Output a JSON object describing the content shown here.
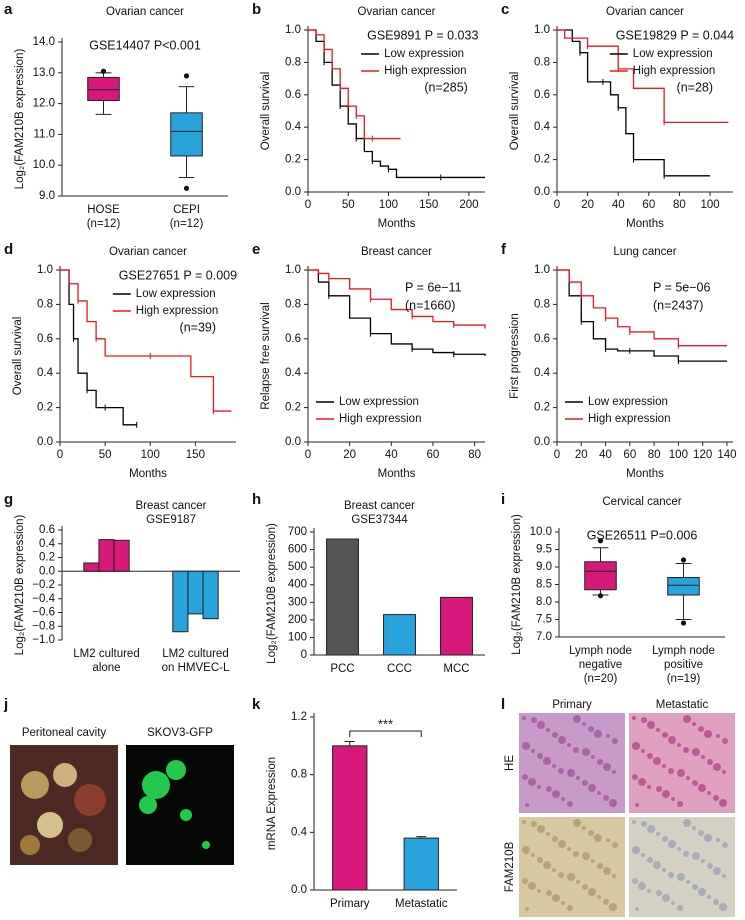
{
  "chart_data": [
    {
      "type": "box",
      "label": "a",
      "title": "Ovarian cancer",
      "annotations": [
        "GSE14407 P<0.001"
      ],
      "ylabel": "Log₂(FAM210B expression)",
      "categories": [
        [
          "HOSE",
          "(n=12)"
        ],
        [
          "CEPI",
          "(n=12)"
        ]
      ],
      "colors": [
        "#d6197a",
        "#29a3dc"
      ],
      "boxes": [
        {
          "whislo": 11.65,
          "q1": 12.1,
          "med": 12.45,
          "q3": 12.85,
          "whishi": 13.0,
          "fliers": [
            13.05
          ]
        },
        {
          "whislo": 9.6,
          "q1": 10.3,
          "med": 11.1,
          "q3": 11.7,
          "whishi": 12.55,
          "fliers": [
            12.9,
            9.25
          ]
        }
      ],
      "ylim": [
        9,
        14
      ],
      "yticks": [
        {
          "value": 9,
          "label": "9.0"
        },
        {
          "value": 10,
          "label": "10.0"
        },
        {
          "value": 11,
          "label": "11.0"
        },
        {
          "value": 12,
          "label": "12.0"
        },
        {
          "value": 13,
          "label": "13.0"
        },
        {
          "value": 14,
          "label": "14.0"
        }
      ]
    },
    {
      "type": "km",
      "label": "b",
      "title": "Ovarian cancer",
      "annotations": [
        "GSE9891 P = 0.033",
        "(n=285)"
      ],
      "legend": "upper right",
      "xlabel": "Months",
      "ylabel": "Overall survival",
      "series": [
        {
          "name": "Low expression",
          "color": "#000000",
          "x": [
            0,
            10,
            20,
            30,
            40,
            50,
            60,
            70,
            80,
            90,
            100,
            110,
            165,
            220
          ],
          "values": [
            1,
            0.93,
            0.8,
            0.66,
            0.53,
            0.42,
            0.33,
            0.25,
            0.19,
            0.16,
            0.14,
            0.09,
            0.09,
            0.09
          ]
        },
        {
          "name": "High expression",
          "color": "#e8191c",
          "x": [
            0,
            10,
            20,
            30,
            40,
            50,
            60,
            70,
            80,
            115
          ],
          "values": [
            1,
            0.97,
            0.88,
            0.76,
            0.64,
            0.53,
            0.47,
            0.33,
            0.33,
            0.33
          ]
        }
      ],
      "xlim": [
        0,
        220
      ],
      "xticks": [
        0,
        50,
        100,
        150,
        200
      ],
      "ylim": [
        0,
        1
      ],
      "yticks": [
        {
          "value": 0,
          "label": "0.0"
        },
        0.2,
        0.4,
        0.6,
        0.8,
        {
          "value": 1,
          "label": "1.0"
        }
      ]
    },
    {
      "type": "km",
      "label": "c",
      "title": "Ovarian cancer",
      "annotations": [
        "GSE19829 P = 0.044",
        "(n=28)"
      ],
      "legend": "upper right",
      "xlabel": "Months",
      "ylabel": "Overall survival",
      "series": [
        {
          "name": "Low expression",
          "color": "#000000",
          "x": [
            0,
            10,
            15,
            20,
            30,
            35,
            40,
            45,
            50,
            60,
            70,
            100
          ],
          "values": [
            1,
            0.93,
            0.86,
            0.68,
            0.68,
            0.6,
            0.52,
            0.36,
            0.2,
            0.2,
            0.1,
            0.1
          ]
        },
        {
          "name": "High expression",
          "color": "#e8191c",
          "x": [
            0,
            5,
            20,
            30,
            40,
            50,
            70,
            112
          ],
          "values": [
            1,
            0.95,
            0.9,
            0.9,
            0.76,
            0.64,
            0.43,
            0.43
          ]
        }
      ],
      "xlim": [
        0,
        115
      ],
      "xticks": [
        0,
        20,
        40,
        60,
        80,
        100
      ],
      "ylim": [
        0,
        1
      ],
      "yticks": [
        {
          "value": 0,
          "label": "0.0"
        },
        0.2,
        0.4,
        0.6,
        0.8,
        {
          "value": 1,
          "label": "1.0"
        }
      ]
    },
    {
      "type": "km",
      "label": "d",
      "title": "Ovarian cancer",
      "annotations": [
        "GSE27651 P = 0.009",
        "(n=39)"
      ],
      "legend": "upper right",
      "xlabel": "Months",
      "ylabel": "Overall survival",
      "series": [
        {
          "name": "Low expression",
          "color": "#000000",
          "x": [
            0,
            10,
            15,
            20,
            30,
            40,
            50,
            70,
            85
          ],
          "values": [
            1,
            0.8,
            0.6,
            0.4,
            0.3,
            0.2,
            0.2,
            0.1,
            0.1
          ]
        },
        {
          "name": "High expression",
          "color": "#e8191c",
          "x": [
            0,
            10,
            20,
            30,
            40,
            50,
            100,
            145,
            170,
            190
          ],
          "values": [
            1,
            0.92,
            0.82,
            0.7,
            0.6,
            0.5,
            0.5,
            0.38,
            0.18,
            0.18
          ]
        }
      ],
      "xlim": [
        0,
        195
      ],
      "xticks": [
        0,
        50,
        100,
        150
      ],
      "ylim": [
        0,
        1
      ],
      "yticks": [
        {
          "value": 0,
          "label": "0.0"
        },
        0.2,
        0.4,
        0.6,
        0.8,
        {
          "value": 1,
          "label": "1.0"
        }
      ]
    },
    {
      "type": "km",
      "label": "e",
      "title": "Breast cancer",
      "annotations": [
        "P = 6e−11",
        "(n=1660)"
      ],
      "legend": "lower left",
      "xlabel": "Months",
      "ylabel": "Relapse free survival",
      "series": [
        {
          "name": "Low expression",
          "color": "#000000",
          "x": [
            0,
            5,
            10,
            20,
            30,
            40,
            50,
            60,
            70,
            85
          ],
          "values": [
            1,
            0.93,
            0.85,
            0.72,
            0.63,
            0.57,
            0.54,
            0.52,
            0.51,
            0.5
          ]
        },
        {
          "name": "High expression",
          "color": "#e8191c",
          "x": [
            0,
            5,
            10,
            20,
            30,
            40,
            50,
            60,
            70,
            85
          ],
          "values": [
            1,
            0.98,
            0.95,
            0.89,
            0.83,
            0.77,
            0.73,
            0.7,
            0.68,
            0.66
          ]
        }
      ],
      "xlim": [
        0,
        85
      ],
      "xticks": [
        0,
        20,
        40,
        60,
        80
      ],
      "ylim": [
        0,
        1
      ],
      "yticks": [
        {
          "value": 0,
          "label": "0.0"
        },
        0.2,
        0.4,
        0.6,
        0.8,
        {
          "value": 1,
          "label": "1.0"
        }
      ]
    },
    {
      "type": "km",
      "label": "f",
      "title": "Lung cancer",
      "annotations": [
        "P = 5e−06",
        "(n=2437)"
      ],
      "legend": "lower left",
      "xlabel": "Months",
      "ylabel": "First progression",
      "series": [
        {
          "name": "Low expression",
          "color": "#000000",
          "x": [
            0,
            10,
            20,
            30,
            40,
            50,
            60,
            80,
            100,
            140
          ],
          "values": [
            1,
            0.85,
            0.7,
            0.6,
            0.54,
            0.53,
            0.53,
            0.5,
            0.47,
            0.47
          ]
        },
        {
          "name": "High expression",
          "color": "#e8191c",
          "x": [
            0,
            10,
            20,
            30,
            40,
            50,
            60,
            80,
            100,
            140
          ],
          "values": [
            1,
            0.93,
            0.85,
            0.78,
            0.72,
            0.67,
            0.64,
            0.6,
            0.56,
            0.56
          ]
        }
      ],
      "xlim": [
        0,
        145
      ],
      "xticks": [
        0,
        20,
        40,
        60,
        80,
        100,
        120,
        140
      ],
      "ylim": [
        0,
        1
      ],
      "yticks": [
        {
          "value": 0,
          "label": "0.0"
        },
        0.2,
        0.4,
        0.6,
        0.8,
        {
          "value": 1,
          "label": "1.0"
        }
      ]
    },
    {
      "type": "groupbar",
      "label": "g",
      "title": "Breast cancer",
      "subtitle": "GSE9187",
      "ylabel": "Log₂(FAM210B expression)",
      "categories": [
        [
          "LM2 cultured",
          "alone"
        ],
        [
          "LM2 cultured",
          "on HMVEC-L"
        ]
      ],
      "colors": [
        "#d6197a",
        "#29a3dc"
      ],
      "values": [
        [
          0.12,
          0.46,
          0.45
        ],
        [
          -0.88,
          -0.62,
          -0.69
        ]
      ],
      "ylim": [
        -1,
        0.6
      ],
      "yticks": [
        {
          "value": -1,
          "label": "−1.0"
        },
        {
          "value": -0.8,
          "label": "−0.8"
        },
        {
          "value": -0.6,
          "label": "−0.6"
        },
        {
          "value": -0.4,
          "label": "−0.4"
        },
        {
          "value": -0.2,
          "label": "−0.2"
        },
        {
          "value": 0,
          "label": "0.0"
        },
        0.2,
        0.4,
        0.6
      ]
    },
    {
      "type": "bar",
      "label": "h",
      "title": "Breast cancer",
      "subtitle": "GSE37344",
      "ylabel": "Log₂(FAM210B expression)",
      "categories": [
        "PCC",
        "CCC",
        "MCC"
      ],
      "colors": [
        "#555555",
        "#29a3dc",
        "#d6197a"
      ],
      "values": [
        660,
        230,
        328
      ],
      "ylim": [
        0,
        700
      ],
      "yticks": [
        0,
        100,
        200,
        300,
        400,
        500,
        600,
        700
      ]
    },
    {
      "type": "box",
      "label": "i",
      "title": "Cervical cancer",
      "annotations": [
        "GSE26511 P=0.006"
      ],
      "ylabel": "Log₂(FAM210B expression)",
      "categories": [
        [
          "Lymph node",
          "negative",
          "(n=20)"
        ],
        [
          "Lymph node",
          "positive",
          "(n=19)"
        ]
      ],
      "colors": [
        "#d6197a",
        "#29a3dc"
      ],
      "boxes": [
        {
          "whislo": 8.2,
          "q1": 8.35,
          "med": 8.88,
          "q3": 9.15,
          "whishi": 9.55,
          "fliers": [
            9.75,
            8.18
          ]
        },
        {
          "whislo": 7.5,
          "q1": 8.2,
          "med": 8.48,
          "q3": 8.7,
          "whishi": 9.1,
          "fliers": [
            9.2,
            7.4
          ]
        }
      ],
      "ylim": [
        7,
        10
      ],
      "yticks": [
        {
          "value": 7,
          "label": "7.0"
        },
        7.5,
        {
          "value": 8,
          "label": "8.0"
        },
        8.5,
        {
          "value": 9,
          "label": "9.0"
        },
        9.5,
        {
          "value": 10,
          "label": "10.0"
        }
      ]
    },
    {
      "type": "photo",
      "label": "j",
      "captions": [
        "Peritoneal cavity",
        "SKOV3-GFP"
      ]
    },
    {
      "type": "errbar",
      "label": "k",
      "ylabel": "mRNA Expression",
      "annotations": [
        "***"
      ],
      "categories": [
        "Primary",
        "Metastatic"
      ],
      "colors": [
        "#d6197a",
        "#29a3dc"
      ],
      "values": [
        1.0,
        0.36
      ],
      "errors": [
        0.03,
        0.01
      ],
      "ylim": [
        0,
        1.2
      ],
      "yticks": [
        {
          "value": 0,
          "label": "0.0"
        },
        0.4,
        0.8,
        1.2
      ]
    },
    {
      "type": "histo",
      "label": "l",
      "columns": [
        "Primary",
        "Metastatic"
      ],
      "rows": [
        "HE",
        "FAM210B"
      ]
    }
  ]
}
